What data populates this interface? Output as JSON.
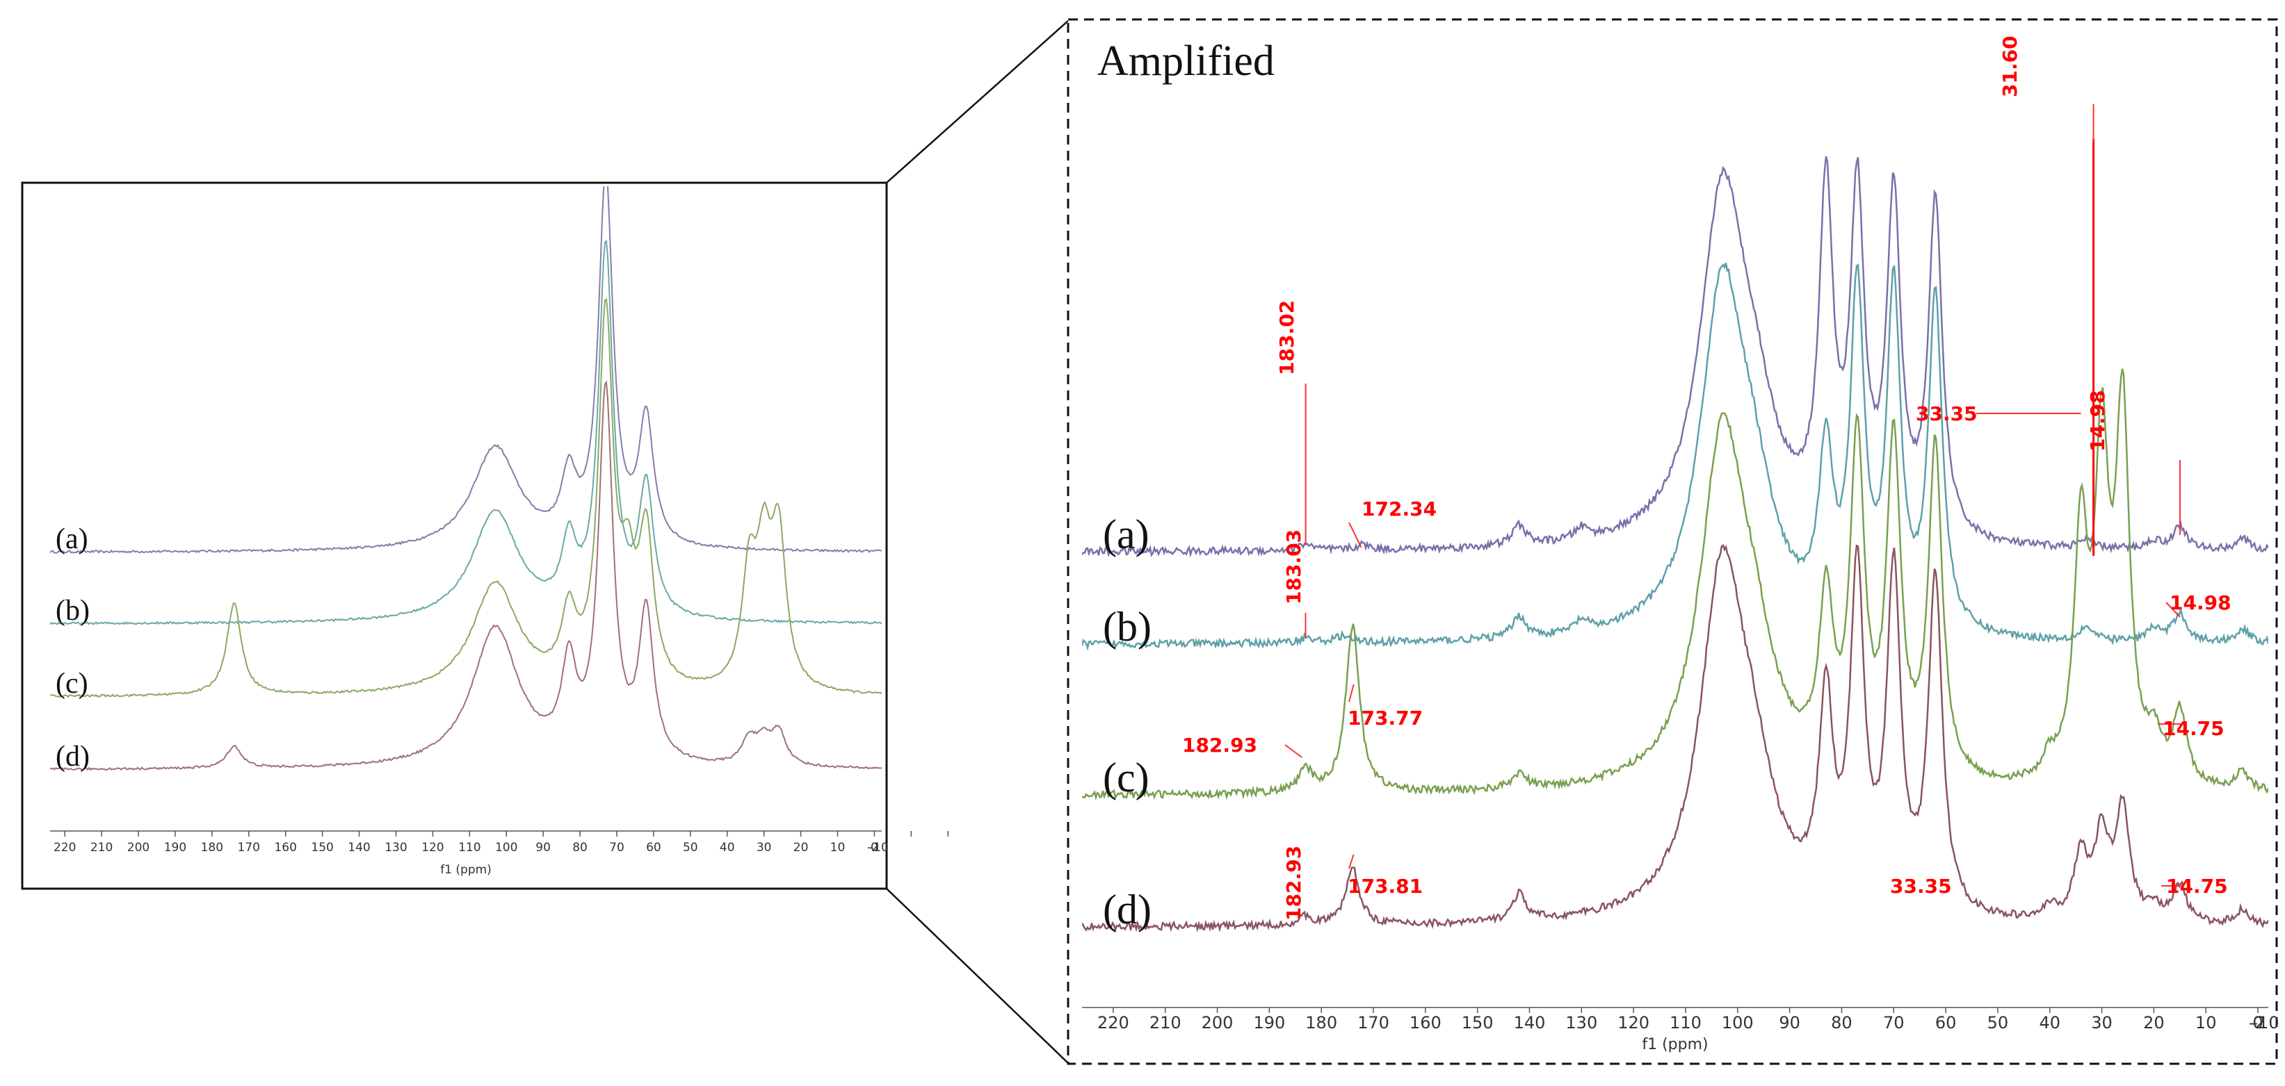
{
  "chart_data": [
    {
      "panel": "overview",
      "type": "line",
      "xlabel": "f1 (ppm)",
      "xlim": [
        224,
        -2
      ],
      "x_ticks": [
        "220",
        "210",
        "200",
        "190",
        "180",
        "170",
        "160",
        "150",
        "140",
        "130",
        "120",
        "110",
        "100",
        "90",
        "80",
        "70",
        "60",
        "50",
        "40",
        "30",
        "20",
        "10",
        "0",
        "-10",
        "-2"
      ],
      "spectra": [
        {
          "label": "(a)",
          "color": "#8a7aaa",
          "peaks": [
            {
              "x": 103,
              "h": 0.28
            },
            {
              "x": 83,
              "h": 0.17
            },
            {
              "x": 73,
              "h": 1.0
            },
            {
              "x": 62,
              "h": 0.34
            }
          ]
        },
        {
          "label": "(b)",
          "color": "#6aa8a8",
          "peaks": [
            {
              "x": 103,
              "h": 0.3
            },
            {
              "x": 83,
              "h": 0.18
            },
            {
              "x": 73,
              "h": 1.0
            },
            {
              "x": 62,
              "h": 0.35
            }
          ]
        },
        {
          "label": "(c)",
          "color": "#8aaa62",
          "peaks": [
            {
              "x": 174,
              "h": 0.25
            },
            {
              "x": 103,
              "h": 0.3
            },
            {
              "x": 83,
              "h": 0.18
            },
            {
              "x": 73,
              "h": 1.0
            },
            {
              "x": 67,
              "h": 0.25
            },
            {
              "x": 62,
              "h": 0.4
            },
            {
              "x": 34,
              "h": 0.3
            },
            {
              "x": 30,
              "h": 0.33
            },
            {
              "x": 26,
              "h": 0.4
            }
          ]
        },
        {
          "label": "(d)",
          "color": "#a07078",
          "peaks": [
            {
              "x": 174,
              "h": 0.06
            },
            {
              "x": 103,
              "h": 0.38
            },
            {
              "x": 83,
              "h": 0.24
            },
            {
              "x": 73,
              "h": 1.0
            },
            {
              "x": 62,
              "h": 0.4
            },
            {
              "x": 34,
              "h": 0.07
            },
            {
              "x": 30,
              "h": 0.06
            },
            {
              "x": 26,
              "h": 0.09
            }
          ]
        }
      ]
    },
    {
      "panel": "amplified",
      "type": "line",
      "title": "Amplified",
      "xlabel": "f1 (ppm)",
      "xlim": [
        226,
        -2
      ],
      "x_ticks": [
        "220",
        "210",
        "200",
        "190",
        "180",
        "170",
        "160",
        "150",
        "140",
        "130",
        "120",
        "110",
        "100",
        "90",
        "80",
        "70",
        "60",
        "50",
        "40",
        "30",
        "20",
        "10",
        "0",
        "-10",
        "-2"
      ],
      "spectra": [
        {
          "label": "(a)",
          "color": "#7a70aa",
          "peaks": [
            {
              "x": 183,
              "h": 0.04
            },
            {
              "x": 172,
              "h": 0.03
            },
            {
              "x": 142,
              "h": 0.12
            },
            {
              "x": 130,
              "h": 0.07
            },
            {
              "x": 103,
              "h": 2.0
            },
            {
              "x": 97,
              "h": 0.6
            },
            {
              "x": 83,
              "h": 2.0
            },
            {
              "x": 77,
              "h": 2.0
            },
            {
              "x": 70,
              "h": 2.0
            },
            {
              "x": 62,
              "h": 2.0
            },
            {
              "x": 33,
              "h": 0.05
            },
            {
              "x": 20,
              "h": 0.05
            },
            {
              "x": 15,
              "h": 0.14
            },
            {
              "x": 3,
              "h": 0.07
            }
          ]
        },
        {
          "label": "(b)",
          "color": "#5ea0a8",
          "peaks": [
            {
              "x": 183,
              "h": 0.03
            },
            {
              "x": 176,
              "h": 0.04
            },
            {
              "x": 142,
              "h": 0.13
            },
            {
              "x": 130,
              "h": 0.07
            },
            {
              "x": 103,
              "h": 2.0
            },
            {
              "x": 97,
              "h": 0.6
            },
            {
              "x": 83,
              "h": 1.0
            },
            {
              "x": 77,
              "h": 2.0
            },
            {
              "x": 70,
              "h": 2.0
            },
            {
              "x": 62,
              "h": 2.0
            },
            {
              "x": 33,
              "h": 0.08
            },
            {
              "x": 20,
              "h": 0.08
            },
            {
              "x": 15,
              "h": 0.17
            },
            {
              "x": 3,
              "h": 0.08
            }
          ]
        },
        {
          "label": "(c)",
          "color": "#78a050",
          "peaks": [
            {
              "x": 183,
              "h": 0.13
            },
            {
              "x": 174,
              "h": 1.0
            },
            {
              "x": 142,
              "h": 0.09
            },
            {
              "x": 103,
              "h": 2.0
            },
            {
              "x": 97,
              "h": 0.6
            },
            {
              "x": 83,
              "h": 1.0
            },
            {
              "x": 77,
              "h": 2.0
            },
            {
              "x": 70,
              "h": 2.0
            },
            {
              "x": 62,
              "h": 2.0
            },
            {
              "x": 34,
              "h": 1.45
            },
            {
              "x": 30,
              "h": 1.9
            },
            {
              "x": 26,
              "h": 2.2
            },
            {
              "x": 40,
              "h": 0.12
            },
            {
              "x": 20,
              "h": 0.24
            },
            {
              "x": 15,
              "h": 0.44
            },
            {
              "x": 3,
              "h": 0.11
            }
          ]
        },
        {
          "label": "(d)",
          "color": "#8a5460",
          "peaks": [
            {
              "x": 183,
              "h": 0.05
            },
            {
              "x": 174,
              "h": 0.34
            },
            {
              "x": 142,
              "h": 0.16
            },
            {
              "x": 103,
              "h": 2.0
            },
            {
              "x": 97,
              "h": 0.6
            },
            {
              "x": 83,
              "h": 1.2
            },
            {
              "x": 77,
              "h": 2.0
            },
            {
              "x": 70,
              "h": 2.0
            },
            {
              "x": 62,
              "h": 2.0
            },
            {
              "x": 34,
              "h": 0.4
            },
            {
              "x": 30,
              "h": 0.5
            },
            {
              "x": 26,
              "h": 0.68
            },
            {
              "x": 40,
              "h": 0.07
            },
            {
              "x": 20,
              "h": 0.09
            },
            {
              "x": 15,
              "h": 0.22
            },
            {
              "x": 3,
              "h": 0.09
            }
          ]
        }
      ],
      "marker_line": {
        "x": 31.6
      },
      "annotations": [
        {
          "text": "183.02",
          "x": 183.02,
          "spectrum": "(a)",
          "rotate": true
        },
        {
          "text": "172.34",
          "x": 172.34,
          "spectrum": "(a)"
        },
        {
          "text": "31.60",
          "x": 31.6,
          "spectrum": "top",
          "rotate": true
        },
        {
          "text": "33.35",
          "x": 33.35,
          "spectrum": "(a)"
        },
        {
          "text": "14.98",
          "x": 14.98,
          "spectrum": "(a)",
          "rotate": true
        },
        {
          "text": "183.03",
          "x": 183.03,
          "spectrum": "(b)",
          "rotate": true
        },
        {
          "text": "14.98",
          "x": 14.98,
          "spectrum": "(b)"
        },
        {
          "text": "173.77",
          "x": 173.77,
          "spectrum": "(c)"
        },
        {
          "text": "182.93",
          "x": 182.93,
          "spectrum": "(c)"
        },
        {
          "text": "14.75",
          "x": 14.75,
          "spectrum": "(c)"
        },
        {
          "text": "182.93",
          "x": 182.93,
          "spectrum": "(d)",
          "rotate": true
        },
        {
          "text": "173.81",
          "x": 173.81,
          "spectrum": "(d)"
        },
        {
          "text": "33.35",
          "x": 33.35,
          "spectrum": "(d)"
        },
        {
          "text": "14.75",
          "x": 14.75,
          "spectrum": "(d)"
        }
      ]
    }
  ]
}
